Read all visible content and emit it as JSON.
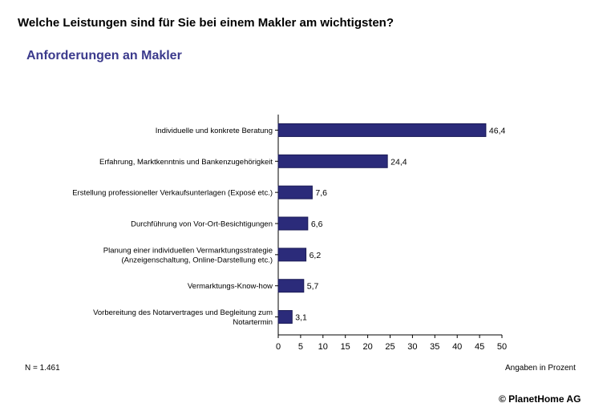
{
  "header": {
    "question": "Welche Leistungen sind für Sie bei einem Makler am wichtigsten?",
    "subtitle": "Anforderungen an Makler"
  },
  "footer": {
    "n": "N = 1.461",
    "unit": "Angaben in Prozent",
    "copyright": "© PlanetHome AG"
  },
  "colors": {
    "bar": "#2b2b7a",
    "bar_stroke": "#1a1a55"
  },
  "chart_data": {
    "type": "bar",
    "orientation": "horizontal",
    "categories": [
      [
        "Individuelle und konkrete Beratung"
      ],
      [
        "Erfahrung, Marktkenntnis und Bankenzugehörigkeit"
      ],
      [
        "Erstellung professioneller Verkaufsunterlagen (Exposé etc.)"
      ],
      [
        "Durchführung von Vor-Ort-Besichtigungen"
      ],
      [
        "Planung einer individuellen Vermarktungsstrategie",
        "(Anzeigenschaltung, Online-Darstellung etc.)"
      ],
      [
        "Vermarktungs-Know-how"
      ],
      [
        "Vorbereitung des Notarvertrages und Begleitung zum",
        "Notartermin"
      ]
    ],
    "values": [
      46.4,
      24.4,
      7.6,
      6.6,
      6.2,
      5.7,
      3.1
    ],
    "value_labels": [
      "46,4",
      "24,4",
      "7,6",
      "6,6",
      "6,2",
      "5,7",
      "3,1"
    ],
    "xticks": [
      0,
      5,
      10,
      15,
      20,
      25,
      30,
      35,
      40,
      45,
      50
    ],
    "xlim": [
      0,
      50
    ],
    "grid": false
  }
}
